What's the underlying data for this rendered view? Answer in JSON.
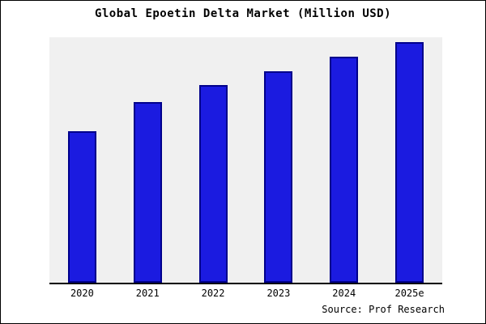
{
  "title": "Global Epoetin Delta Market (Million USD)",
  "source_note": "Source: Prof Research",
  "colors": {
    "bar_fill": "#1b1be0",
    "bar_stroke": "#00008b",
    "plot_bg": "#f0f0f0",
    "axis": "#000000"
  },
  "chart_data": {
    "type": "bar",
    "title": "Global Epoetin Delta Market (Million USD)",
    "categories": [
      "2020",
      "2021",
      "2022",
      "2023",
      "2024",
      "2025e"
    ],
    "values": [
      63,
      75,
      82,
      88,
      94,
      100
    ],
    "xlabel": "",
    "ylabel": "",
    "ylim": [
      0,
      102
    ],
    "grid": false,
    "legend": false,
    "value_note": "no y-axis tick labels shown; values estimated from relative bar heights"
  }
}
